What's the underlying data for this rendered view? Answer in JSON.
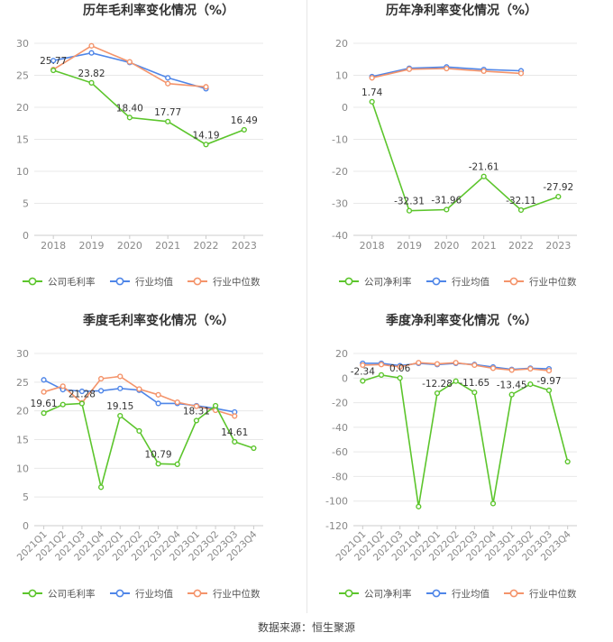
{
  "footer": "数据来源：恒生聚源",
  "legend_labels": [
    "公司毛利率",
    "行业均值",
    "行业中位数",
    "公司净利率"
  ],
  "colors": {
    "company": "#5cc52c",
    "avg": "#4f86e8",
    "median": "#f4946b",
    "grid": "#e8e8e8",
    "axis_text": "#888888"
  },
  "chart_data": [
    {
      "type": "line",
      "title": "历年毛利率变化情况（%）",
      "categories": [
        "2018",
        "2019",
        "2020",
        "2021",
        "2022",
        "2023"
      ],
      "ylim": [
        0,
        30
      ],
      "yticks": [
        0,
        5,
        10,
        15,
        20,
        25,
        30
      ],
      "legend": "bottom",
      "series": [
        {
          "name": "公司毛利率",
          "role": "company",
          "values": [
            25.77,
            23.82,
            18.4,
            17.77,
            14.19,
            16.49
          ],
          "labels": [
            "25.77",
            "23.82",
            "18.40",
            "17.77",
            "14.19",
            "16.49"
          ]
        },
        {
          "name": "行业均值",
          "role": "avg",
          "values": [
            27.3,
            28.5,
            27.0,
            24.6,
            22.9,
            null
          ]
        },
        {
          "name": "行业中位数",
          "role": "median",
          "values": [
            25.9,
            29.6,
            27.1,
            23.7,
            23.2,
            null
          ]
        }
      ]
    },
    {
      "type": "line",
      "title": "历年净利率变化情况（%）",
      "categories": [
        "2018",
        "2019",
        "2020",
        "2021",
        "2022",
        "2023"
      ],
      "ylim": [
        -40,
        20
      ],
      "yticks": [
        -40,
        -30,
        -20,
        -10,
        0,
        10,
        20
      ],
      "legend": "bottom",
      "series": [
        {
          "name": "公司净利率",
          "role": "company",
          "values": [
            1.74,
            -32.31,
            -31.96,
            -21.61,
            -32.11,
            -27.92
          ],
          "labels": [
            "1.74",
            "-32.31",
            "-31.96",
            "-21.61",
            "-32.11",
            "-27.92"
          ]
        },
        {
          "name": "行业均值",
          "role": "avg",
          "values": [
            9.6,
            12.2,
            12.6,
            11.8,
            11.4,
            null
          ]
        },
        {
          "name": "行业中位数",
          "role": "median",
          "values": [
            9.2,
            11.9,
            12.1,
            11.3,
            10.6,
            null
          ]
        }
      ]
    },
    {
      "type": "line",
      "title": "季度毛利率变化情况（%）",
      "categories": [
        "2021Q1",
        "2021Q2",
        "2021Q3",
        "2021Q4",
        "2022Q1",
        "2022Q2",
        "2022Q3",
        "2022Q4",
        "2023Q1",
        "2023Q2",
        "2023Q3",
        "2023Q4"
      ],
      "ylim": [
        0,
        30
      ],
      "yticks": [
        0,
        5,
        10,
        15,
        20,
        25,
        30
      ],
      "legend": "bottom",
      "series": [
        {
          "name": "公司毛利率",
          "role": "company",
          "values": [
            19.61,
            21.1,
            21.28,
            6.7,
            19.15,
            16.5,
            10.79,
            10.7,
            18.31,
            20.9,
            14.61,
            13.5
          ],
          "labels": [
            "19.61",
            "",
            "21.28",
            "",
            "19.15",
            "",
            "10.79",
            "",
            "18.31",
            "",
            "14.61",
            ""
          ]
        },
        {
          "name": "行业均值",
          "role": "avg",
          "values": [
            25.4,
            23.7,
            23.4,
            23.5,
            23.9,
            23.6,
            21.3,
            21.3,
            20.9,
            20.4,
            19.8,
            null
          ]
        },
        {
          "name": "行业中位数",
          "role": "median",
          "values": [
            23.3,
            24.3,
            21.4,
            25.6,
            26.0,
            23.8,
            22.8,
            21.5,
            20.8,
            20.1,
            19.1,
            null
          ]
        }
      ]
    },
    {
      "type": "line",
      "title": "季度净利率变化情况（%）",
      "categories": [
        "2021Q1",
        "2021Q2",
        "2021Q3",
        "2021Q4",
        "2022Q1",
        "2022Q2",
        "2022Q3",
        "2022Q4",
        "2023Q1",
        "2023Q2",
        "2023Q3",
        "2023Q4"
      ],
      "ylim": [
        -120,
        20
      ],
      "yticks": [
        -120,
        -100,
        -80,
        -60,
        -40,
        -20,
        0,
        20
      ],
      "legend": "bottom",
      "series": [
        {
          "name": "公司净利率",
          "role": "company",
          "values": [
            -2.34,
            2.5,
            0.06,
            -104.5,
            -12.28,
            -2.5,
            -11.65,
            -102.0,
            -13.45,
            -5.0,
            -9.97,
            -68.0
          ],
          "labels": [
            "-2.34",
            "",
            "0.06",
            "",
            "-12.28",
            "",
            "-11.65",
            "",
            "-13.45",
            "",
            "-9.97",
            ""
          ]
        },
        {
          "name": "行业均值",
          "role": "avg",
          "values": [
            12.0,
            12.0,
            10.0,
            12.0,
            11.0,
            12.0,
            11.0,
            9.0,
            7.0,
            8.0,
            7.5,
            null
          ]
        },
        {
          "name": "行业中位数",
          "role": "median",
          "values": [
            10.5,
            11.0,
            9.0,
            12.5,
            11.5,
            12.5,
            10.5,
            8.0,
            6.5,
            7.5,
            6.0,
            null
          ]
        }
      ]
    }
  ]
}
